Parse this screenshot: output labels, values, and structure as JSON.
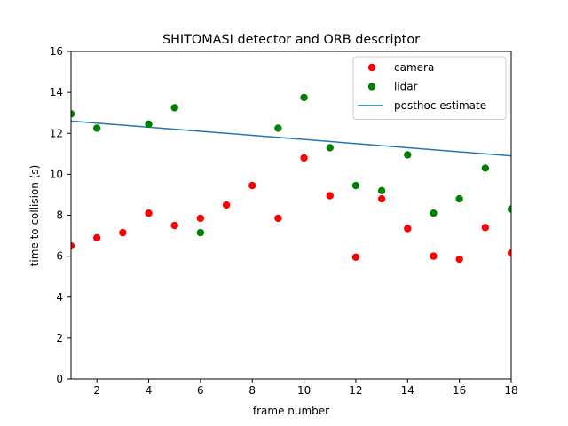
{
  "chart_data": {
    "type": "scatter",
    "title": "SHITOMASI detector and ORB descriptor",
    "xlabel": "frame number",
    "ylabel": "time to collision (s)",
    "xlim": [
      1,
      18
    ],
    "ylim": [
      0,
      16
    ],
    "xticks": [
      2,
      4,
      6,
      8,
      10,
      12,
      14,
      16,
      18
    ],
    "yticks": [
      0,
      2,
      4,
      6,
      8,
      10,
      12,
      14,
      16
    ],
    "grid": false,
    "legend_position": "upper right",
    "series": [
      {
        "name": "camera",
        "kind": "scatter",
        "color": "#ff0000",
        "x": [
          1,
          2,
          3,
          4,
          5,
          6,
          7,
          8,
          9,
          10,
          11,
          12,
          13,
          14,
          15,
          16,
          17,
          18
        ],
        "y": [
          6.5,
          6.9,
          7.15,
          8.1,
          7.5,
          7.85,
          8.5,
          9.45,
          7.85,
          10.8,
          8.95,
          5.95,
          8.8,
          7.35,
          6.0,
          5.85,
          7.4,
          6.15
        ]
      },
      {
        "name": "lidar",
        "kind": "scatter",
        "color": "#008000",
        "x": [
          1,
          2,
          4,
          5,
          6,
          9,
          10,
          11,
          12,
          13,
          14,
          15,
          16,
          17,
          18
        ],
        "y": [
          12.95,
          12.25,
          12.45,
          13.25,
          7.15,
          12.25,
          13.75,
          11.3,
          9.45,
          9.2,
          10.95,
          8.1,
          8.8,
          10.3,
          8.3
        ]
      },
      {
        "name": "posthoc estimate",
        "kind": "line",
        "color": "#1f77b4",
        "x": [
          1,
          18
        ],
        "y": [
          12.6,
          10.9
        ]
      }
    ]
  }
}
